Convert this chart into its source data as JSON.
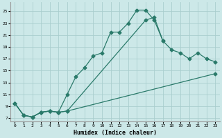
{
  "xlabel": "Humidex (Indice chaleur)",
  "bg_color": "#cce8e8",
  "grid_color": "#aacece",
  "line_color": "#2a7a6a",
  "xlim": [
    -0.5,
    23.5
  ],
  "ylim": [
    6.5,
    26.5
  ],
  "xticks": [
    0,
    1,
    2,
    3,
    4,
    5,
    6,
    7,
    8,
    9,
    10,
    11,
    12,
    13,
    14,
    15,
    16,
    17,
    18,
    19,
    20,
    21,
    22,
    23
  ],
  "yticks": [
    7,
    9,
    11,
    13,
    15,
    17,
    19,
    21,
    23,
    25
  ],
  "series1_x": [
    0,
    1,
    2,
    3,
    4,
    5,
    6,
    7,
    8,
    9,
    10,
    11,
    12,
    13,
    14,
    15,
    16,
    17
  ],
  "series1_y": [
    9.5,
    7.5,
    7.2,
    8.0,
    8.2,
    8.0,
    11.0,
    14.0,
    15.5,
    17.5,
    18.0,
    21.5,
    21.5,
    23.0,
    25.2,
    25.2,
    23.5,
    20.0
  ],
  "series2_x": [
    0,
    1,
    2,
    3,
    4,
    5,
    6,
    15,
    16,
    17,
    18,
    19,
    20,
    21,
    22,
    23
  ],
  "series2_y": [
    9.5,
    7.5,
    7.2,
    8.0,
    8.2,
    8.0,
    8.2,
    23.5,
    24.0,
    20.0,
    18.5,
    18.0,
    17.0,
    18.0,
    17.0,
    16.5
  ],
  "series3_x": [
    0,
    1,
    2,
    3,
    4,
    5,
    6,
    23
  ],
  "series3_y": [
    9.5,
    7.5,
    7.2,
    8.0,
    8.2,
    8.0,
    8.2,
    14.5
  ]
}
